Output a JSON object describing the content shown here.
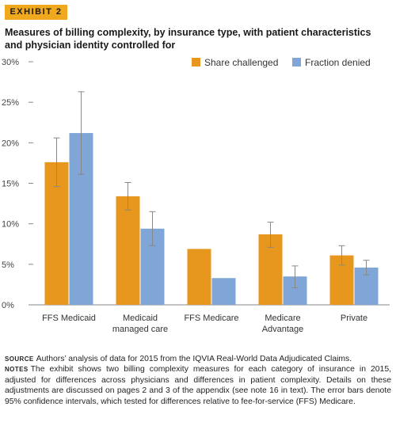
{
  "exhibit": {
    "label": "EXHIBIT 2"
  },
  "title": "Measures of billing complexity, by insurance type, with patient characteristics and physician identity controlled for",
  "colors": {
    "share_challenged": "#e8971e",
    "fraction_denied": "#7fa6d6",
    "error_bar": "#888888",
    "tag": "#f0a81e"
  },
  "chart_data": {
    "type": "bar",
    "title": "Measures of billing complexity, by insurance type, with patient characteristics and physician identity controlled for",
    "xlabel": "",
    "ylabel": "",
    "ylim": [
      0,
      30
    ],
    "yticks": [
      0,
      5,
      10,
      15,
      20,
      25,
      30
    ],
    "ytick_labels": [
      "0%",
      "5%",
      "10%",
      "15%",
      "20%",
      "25%",
      "30%"
    ],
    "categories": [
      [
        "FFS Medicaid"
      ],
      [
        "Medicaid",
        "managed care"
      ],
      [
        "FFS Medicare"
      ],
      [
        "Medicare",
        "Advantage"
      ],
      [
        "Private"
      ]
    ],
    "series": [
      {
        "name": "Share challenged",
        "color": "#e8971e",
        "values": [
          17.6,
          13.4,
          6.9,
          8.7,
          6.1
        ],
        "ci": [
          [
            14.6,
            20.6
          ],
          [
            11.7,
            15.1
          ],
          null,
          [
            7.1,
            10.2
          ],
          [
            4.9,
            7.3
          ]
        ]
      },
      {
        "name": "Fraction denied",
        "color": "#7fa6d6",
        "values": [
          21.2,
          9.4,
          3.3,
          3.5,
          4.6
        ],
        "ci": [
          [
            16.1,
            26.3
          ],
          [
            7.3,
            11.5
          ],
          null,
          [
            2.1,
            4.8
          ],
          [
            3.7,
            5.5
          ]
        ]
      }
    ],
    "legend_position": "top-right",
    "grid": false
  },
  "footnotes": {
    "source_label": "source",
    "source_text": "Authors’ analysis of data for 2015 from the IQVIA Real-World Data Adjudicated Claims.",
    "notes_label": "notes",
    "notes_text": "The exhibit shows two billing complexity measures for each category of insurance in 2015, adjusted for differences across physicians and differences in patient complexity. Details on these adjustments are discussed on pages 2 and 3 of the appendix (see note 16 in text). The error bars denote 95% confidence intervals, which tested for differences relative to fee-for-service (FFS) Medicare."
  }
}
